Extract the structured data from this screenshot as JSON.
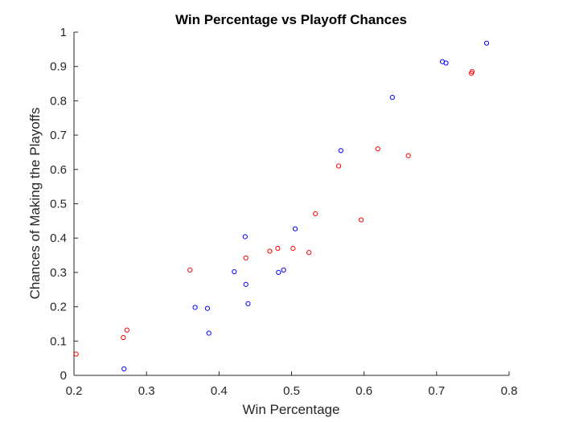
{
  "chart_data": {
    "type": "scatter",
    "title": "Win Percentage vs Playoff Chances",
    "xlabel": "Win Percentage",
    "ylabel": "Chances of Making the Playoffs",
    "xlim": [
      0.2,
      0.8
    ],
    "ylim": [
      0,
      1
    ],
    "xticks": [
      0.2,
      0.3,
      0.4,
      0.5,
      0.6,
      0.7,
      0.8
    ],
    "xtick_labels": [
      "0.2",
      "0.3",
      "0.4",
      "0.5",
      "0.6",
      "0.7",
      "0.8"
    ],
    "yticks": [
      0,
      0.1,
      0.2,
      0.3,
      0.4,
      0.5,
      0.6,
      0.7,
      0.8,
      0.9,
      1
    ],
    "ytick_labels": [
      "0",
      "0.1",
      "0.2",
      "0.3",
      "0.4",
      "0.5",
      "0.6",
      "0.7",
      "0.8",
      "0.9",
      "1"
    ],
    "grid": false,
    "series": [
      {
        "color": "#0000ff",
        "marker": "open-circle",
        "points": [
          [
            0.269,
            0.019
          ],
          [
            0.367,
            0.198
          ],
          [
            0.384,
            0.195
          ],
          [
            0.386,
            0.123
          ],
          [
            0.421,
            0.302
          ],
          [
            0.436,
            0.404
          ],
          [
            0.437,
            0.265
          ],
          [
            0.44,
            0.209
          ],
          [
            0.482,
            0.3
          ],
          [
            0.489,
            0.307
          ],
          [
            0.505,
            0.427
          ],
          [
            0.568,
            0.655
          ],
          [
            0.639,
            0.81
          ],
          [
            0.708,
            0.914
          ],
          [
            0.713,
            0.91
          ],
          [
            0.769,
            0.968
          ]
        ]
      },
      {
        "color": "#ff0000",
        "marker": "open-circle",
        "points": [
          [
            0.203,
            0.062
          ],
          [
            0.268,
            0.11
          ],
          [
            0.273,
            0.132
          ],
          [
            0.36,
            0.307
          ],
          [
            0.437,
            0.342
          ],
          [
            0.47,
            0.362
          ],
          [
            0.481,
            0.37
          ],
          [
            0.502,
            0.37
          ],
          [
            0.524,
            0.358
          ],
          [
            0.533,
            0.471
          ],
          [
            0.565,
            0.61
          ],
          [
            0.596,
            0.453
          ],
          [
            0.619,
            0.66
          ],
          [
            0.661,
            0.64
          ],
          [
            0.748,
            0.88
          ],
          [
            0.749,
            0.885
          ]
        ]
      }
    ]
  }
}
